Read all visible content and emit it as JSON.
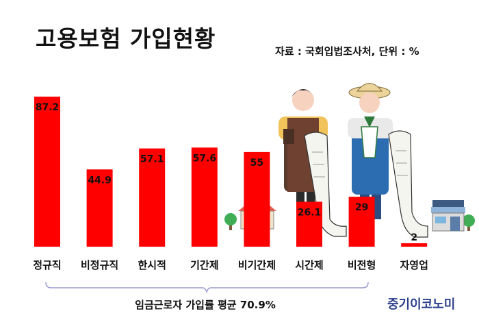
{
  "title": "고용보험 가입현황",
  "source": "자료 : 국회입법조사처, 단위 : %",
  "average_note": "임금근로자 가입률 평균 70.9%",
  "brand": "중기이코노미",
  "colors": {
    "bar": "#ff0000",
    "text": "#111111",
    "brand": "#2a3f8c"
  },
  "chart_data": {
    "type": "bar",
    "title": "고용보험 가입현황",
    "categories": [
      "정규직",
      "비정규직",
      "한시적",
      "기간제",
      "비기간제",
      "시간제",
      "비전형",
      "자영업"
    ],
    "values": [
      87.2,
      44.9,
      57.1,
      57.6,
      55,
      26.1,
      29,
      2
    ],
    "value_labels": [
      "87.2",
      "44.9",
      "57.1",
      "57.6",
      "55",
      "26.1",
      "29",
      "2"
    ],
    "ylim": [
      0,
      90
    ],
    "unit": "%",
    "grid": false,
    "legend": "none"
  },
  "decorations": [
    "barista-illustration",
    "farmer-illustration",
    "shop-icon",
    "tree-icon"
  ]
}
